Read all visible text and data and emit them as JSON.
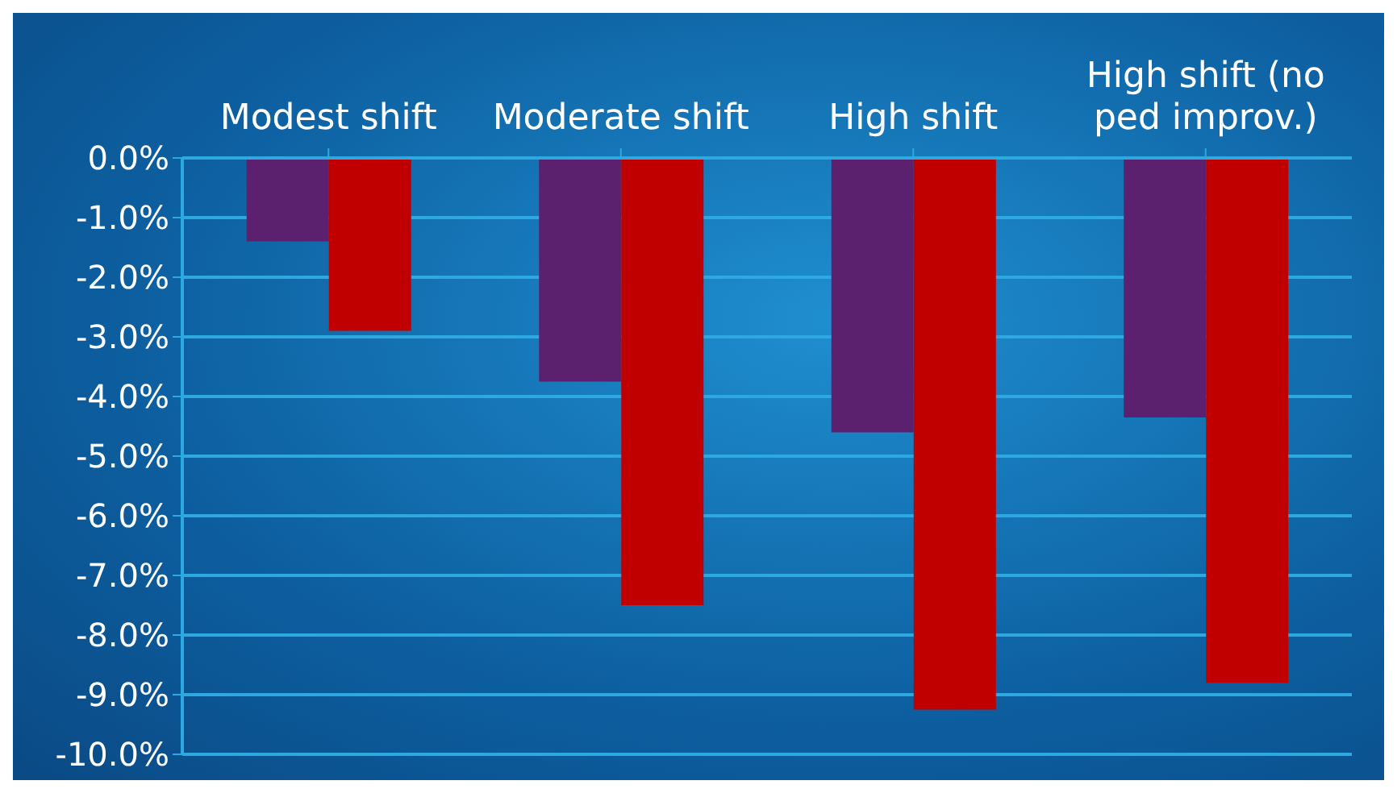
{
  "chart_data": {
    "type": "bar",
    "categories": [
      "Modest shift",
      "Moderate shift",
      "High shift",
      "High shift (no ped improv.)"
    ],
    "series": [
      {
        "color": "#5b206e",
        "values": [
          -1.4,
          -3.75,
          -4.6,
          -4.35
        ]
      },
      {
        "color": "#c00000",
        "values": [
          -2.9,
          -7.5,
          -9.25,
          -8.8
        ]
      }
    ],
    "ylim": [
      -10,
      0
    ],
    "yticks": [
      {
        "value": 0,
        "label": "0.0%"
      },
      {
        "value": -1,
        "label": "-1.0%"
      },
      {
        "value": -2,
        "label": "-2.0%"
      },
      {
        "value": -3,
        "label": "-3.0%"
      },
      {
        "value": -4,
        "label": "-4.0%"
      },
      {
        "value": -5,
        "label": "-5.0%"
      },
      {
        "value": -6,
        "label": "-6.0%"
      },
      {
        "value": -7,
        "label": "-7.0%"
      },
      {
        "value": -8,
        "label": "-8.0%"
      },
      {
        "value": -9,
        "label": "-9.0%"
      },
      {
        "value": -10,
        "label": "-10.0%"
      }
    ],
    "grid": "y",
    "legend": false
  }
}
